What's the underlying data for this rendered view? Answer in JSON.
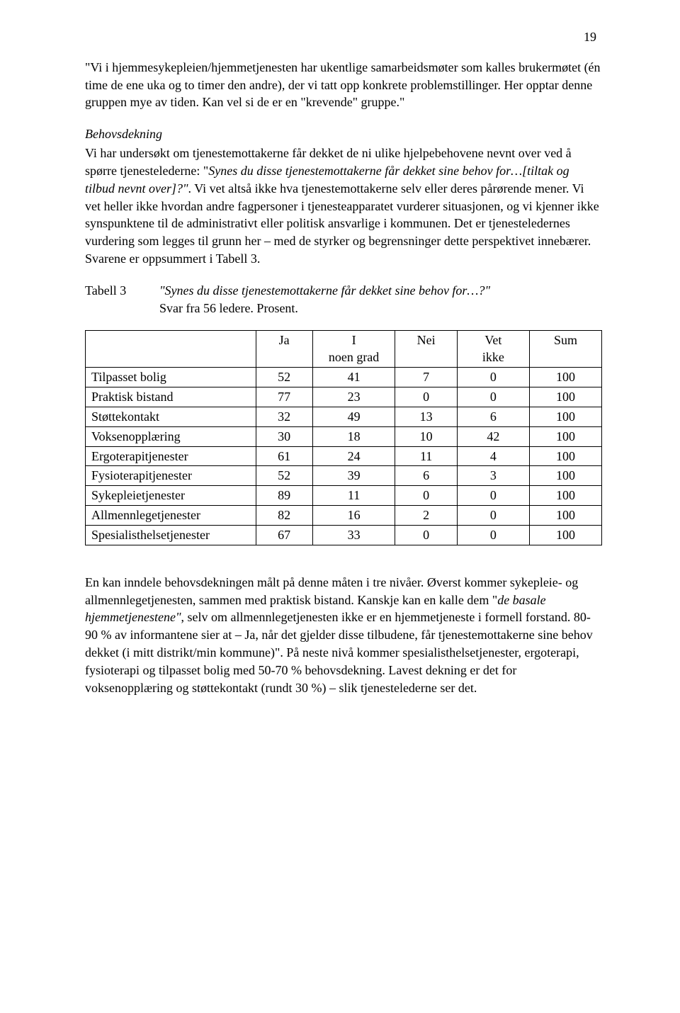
{
  "page_number": "19",
  "quote_paragraph": "\"Vi i hjemmesykepleien/hjemmetjenesten har ukentlige samarbeidsmøter som kalles brukermøtet (én time de ene uka og to timer den andre), der vi tatt opp konkrete problemstillinger. Her opptar denne gruppen mye av tiden. Kan vel si de er en \"krevende\" gruppe.\"",
  "section_heading": "Behovsdekning",
  "body_prefix": "Vi har undersøkt om tjenestemottakerne får dekket de ni ulike hjelpebehovene nevnt over ved å spørre tjenestelederne: \"",
  "body_italic": "Synes du disse tjenestemottakerne får dekket sine behov for…[tiltak og tilbud nevnt over]?\"",
  "body_suffix": ". Vi vet altså ikke hva tjenestemottakerne selv eller deres pårørende mener. Vi vet heller ikke hvordan andre fagpersoner i tjenesteapparatet vurderer situasjonen, og vi kjenner ikke synspunktene til de administrativt eller politisk ansvarlige i kommunen. Det er tjenesteledernes vurdering som legges til grunn her – med de styrker og begrensninger dette perspektivet innebærer. Svarene er oppsummert i Tabell 3.",
  "table_label": "Tabell 3",
  "table_caption_italic": "\"Synes du disse tjenestemottakerne får dekket sine behov for…?\"",
  "table_caption_rest": "Svar fra 56 ledere. Prosent.",
  "table": {
    "headers": [
      "",
      "Ja",
      "I noen grad",
      "Nei",
      "Vet ikke",
      "Sum"
    ],
    "col_widths": [
      "33%",
      "11%",
      "16%",
      "12%",
      "14%",
      "14%"
    ],
    "rows": [
      [
        "Tilpasset bolig",
        "52",
        "41",
        "7",
        "0",
        "100"
      ],
      [
        "Praktisk bistand",
        "77",
        "23",
        "0",
        "0",
        "100"
      ],
      [
        "Støttekontakt",
        "32",
        "49",
        "13",
        "6",
        "100"
      ],
      [
        "Voksenopplæring",
        "30",
        "18",
        "10",
        "42",
        "100"
      ],
      [
        "Ergoterapitjenester",
        "61",
        "24",
        "11",
        "4",
        "100"
      ],
      [
        "Fysioterapitjenester",
        "52",
        "39",
        "6",
        "3",
        "100"
      ],
      [
        "Sykepleietjenester",
        "89",
        "11",
        "0",
        "0",
        "100"
      ],
      [
        "Allmennlegetjenester",
        "82",
        "16",
        "2",
        "0",
        "100"
      ],
      [
        "Spesialisthelsetjenester",
        "67",
        "33",
        "0",
        "0",
        "100"
      ]
    ]
  },
  "closing_p1_a": "En kan inndele behovsdekningen målt på denne måten i tre nivåer. Øverst kommer sykepleie- og allmennlegetjenesten, sammen med praktisk bistand. Kanskje kan en kalle dem \"",
  "closing_p1_ital": "de basale hjemmetjenestene\"",
  "closing_p1_b": ", selv om allmennlegetjenesten ikke er en hjemmetjeneste i formell forstand. 80-90 % av informantene sier at – Ja, når det gjelder disse tilbudene, får tjenestemottakerne sine behov dekket (i mitt distrikt/min kommune)\". På neste nivå kommer spesialisthelsetjenester, ergoterapi, fysioterapi og tilpasset bolig med 50-70 % behovsdekning. Lavest dekning er det for voksenopplæring og støttekontakt (rundt 30 %) – slik tjenestelederne ser det."
}
